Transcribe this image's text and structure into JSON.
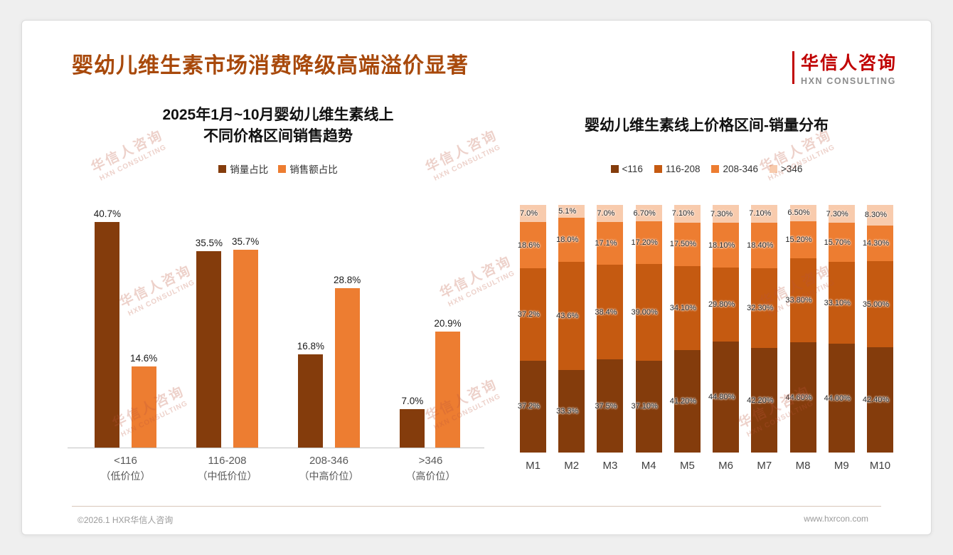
{
  "page": {
    "title": "婴幼儿维生素市场消费降级高端溢价显著",
    "title_color": "#A8490B",
    "logo": {
      "cn": "华信人咨询",
      "en": "HXN CONSULTING",
      "accent": "#C00000"
    },
    "watermark": {
      "cn": "华信人咨询",
      "en": "HXN CONSULTING"
    },
    "footer": {
      "left": "©2026.1 HXR华信人咨询",
      "right": "www.hxrcon.com"
    }
  },
  "chart_data": [
    {
      "type": "bar",
      "title_lines": [
        "2025年1月~10月婴幼儿维生素线上",
        "不同价格区间销售趋势"
      ],
      "xlabel": "",
      "ylabel": "",
      "ylim": [
        0,
        45
      ],
      "grid": false,
      "legend_position": "top",
      "categories": [
        {
          "label": "<116",
          "sub": "（低价位）"
        },
        {
          "label": "116-208",
          "sub": "（中低价位）"
        },
        {
          "label": "208-346",
          "sub": "（中高价位）"
        },
        {
          "label": ">346",
          "sub": "（高价位）"
        }
      ],
      "series": [
        {
          "name": "销量占比",
          "color": "#843C0C",
          "values": [
            40.7,
            35.5,
            16.8,
            7.0
          ],
          "labels": [
            "40.7%",
            "35.5%",
            "16.8%",
            "7.0%"
          ]
        },
        {
          "name": "销售额占比",
          "color": "#ED7D31",
          "values": [
            14.6,
            35.7,
            28.8,
            20.9
          ],
          "labels": [
            "14.6%",
            "35.7%",
            "28.8%",
            "20.9%"
          ]
        }
      ]
    },
    {
      "type": "bar",
      "stacked": true,
      "title": "婴幼儿维生素线上价格区间-销量分布",
      "xlabel": "",
      "ylabel": "",
      "ylim": [
        0,
        100
      ],
      "grid": false,
      "legend_position": "top",
      "categories": [
        "M1",
        "M2",
        "M3",
        "M4",
        "M5",
        "M6",
        "M7",
        "M8",
        "M9",
        "M10"
      ],
      "series": [
        {
          "name": "<116",
          "color": "#843C0C",
          "values": [
            37.2,
            33.3,
            37.5,
            37.1,
            41.2,
            44.8,
            42.2,
            44.6,
            44.0,
            42.4
          ],
          "labels": [
            "37.2%",
            "33.3%",
            "37.5%",
            "37.10%",
            "41.20%",
            "44.80%",
            "42.20%",
            "44.60%",
            "44.00%",
            "42.40%"
          ]
        },
        {
          "name": "116-208",
          "color": "#C55A11",
          "values": [
            37.2,
            43.6,
            38.4,
            39.0,
            34.1,
            29.8,
            32.3,
            33.8,
            33.1,
            35.0
          ],
          "labels": [
            "37.2%",
            "43.6%",
            "38.4%",
            "39.00%",
            "34.10%",
            "29.80%",
            "32.30%",
            "33.80%",
            "33.10%",
            "35.00%"
          ]
        },
        {
          "name": "208-346",
          "color": "#ED7D31",
          "values": [
            18.6,
            18.0,
            17.1,
            17.2,
            17.5,
            18.1,
            18.4,
            15.2,
            15.7,
            14.3
          ],
          "labels": [
            "18.6%",
            "18.0%",
            "17.1%",
            "17.20%",
            "17.50%",
            "18.10%",
            "18.40%",
            "15.20%",
            "15.70%",
            "14.30%"
          ]
        },
        {
          "name": ">346",
          "color": "#F8CBAD",
          "values": [
            7.0,
            5.1,
            7.0,
            6.7,
            7.1,
            7.3,
            7.1,
            6.5,
            7.3,
            8.3
          ],
          "labels": [
            "7.0%",
            "5.1%",
            "7.0%",
            "6.70%",
            "7.10%",
            "7.30%",
            "7.10%",
            "6.50%",
            "7.30%",
            "8.30%"
          ]
        }
      ]
    }
  ]
}
